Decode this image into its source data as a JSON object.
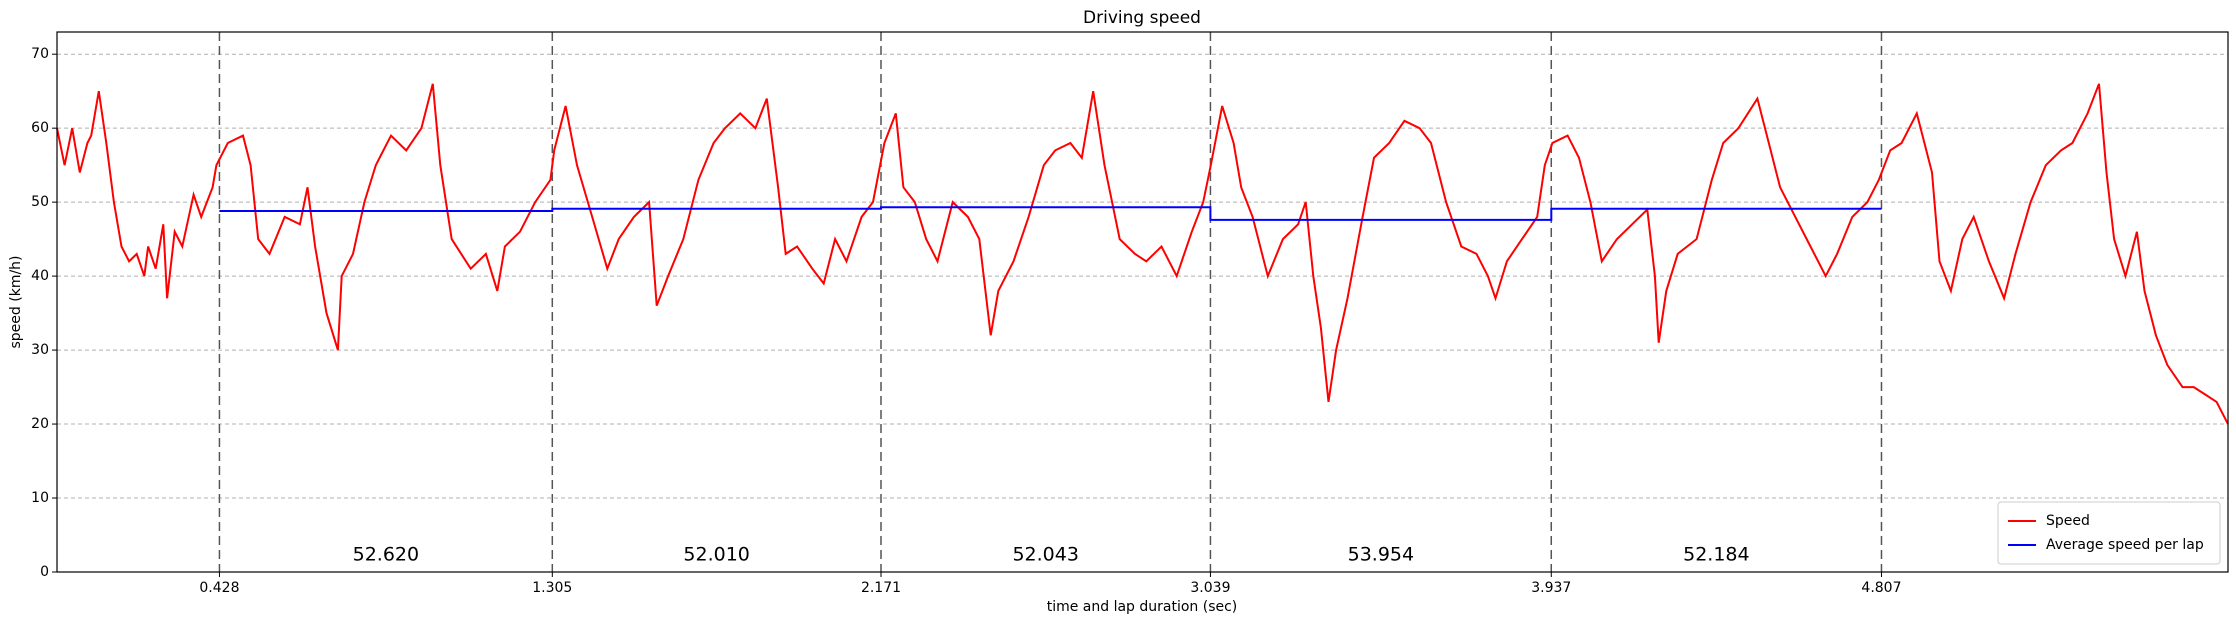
{
  "chart_data": {
    "type": "line",
    "title": "Driving speed",
    "xlabel": "time and lap duration (sec)",
    "ylabel": "speed (km/h)",
    "xlim": [
      0,
      5.72
    ],
    "ylim": [
      0,
      73
    ],
    "xticks": [
      0.428,
      1.305,
      2.171,
      3.039,
      3.937,
      4.807
    ],
    "yticks": [
      0,
      10,
      20,
      30,
      40,
      50,
      60,
      70
    ],
    "grid": true,
    "lap_lines": true,
    "legend": "lower right",
    "lap_labels": [
      "52.620",
      "52.010",
      "52.043",
      "53.954",
      "52.184"
    ],
    "series": [
      {
        "name": "Speed",
        "color": "#ff0000",
        "x": [
          0.0,
          0.02,
          0.04,
          0.06,
          0.08,
          0.09,
          0.11,
          0.13,
          0.15,
          0.17,
          0.19,
          0.21,
          0.23,
          0.24,
          0.26,
          0.28,
          0.29,
          0.31,
          0.33,
          0.36,
          0.38,
          0.41,
          0.42,
          0.45,
          0.49,
          0.51,
          0.53,
          0.56,
          0.6,
          0.64,
          0.66,
          0.68,
          0.71,
          0.74,
          0.75,
          0.78,
          0.81,
          0.84,
          0.88,
          0.92,
          0.96,
          0.99,
          1.01,
          1.04,
          1.09,
          1.13,
          1.16,
          1.18,
          1.22,
          1.26,
          1.3,
          1.31,
          1.34,
          1.37,
          1.41,
          1.45,
          1.48,
          1.52,
          1.56,
          1.58,
          1.61,
          1.65,
          1.69,
          1.73,
          1.76,
          1.8,
          1.84,
          1.87,
          1.9,
          1.92,
          1.95,
          1.99,
          2.02,
          2.05,
          2.08,
          2.12,
          2.15,
          2.18,
          2.21,
          2.23,
          2.26,
          2.29,
          2.32,
          2.36,
          2.4,
          2.43,
          2.46,
          2.48,
          2.52,
          2.56,
          2.6,
          2.63,
          2.67,
          2.7,
          2.73,
          2.76,
          2.8,
          2.84,
          2.87,
          2.91,
          2.95,
          2.99,
          3.02,
          3.04,
          3.07,
          3.1,
          3.12,
          3.15,
          3.19,
          3.23,
          3.27,
          3.29,
          3.31,
          3.33,
          3.35,
          3.37,
          3.4,
          3.44,
          3.47,
          3.51,
          3.55,
          3.59,
          3.62,
          3.66,
          3.7,
          3.74,
          3.77,
          3.79,
          3.82,
          3.86,
          3.9,
          3.92,
          3.94,
          3.98,
          4.01,
          4.04,
          4.07,
          4.11,
          4.15,
          4.19,
          4.21,
          4.22,
          4.24,
          4.27,
          4.32,
          4.36,
          4.39,
          4.43,
          4.48,
          4.51,
          4.54,
          4.58,
          4.62,
          4.66,
          4.69,
          4.73,
          4.77,
          4.8,
          4.83,
          4.86,
          4.9,
          4.94,
          4.96,
          4.99,
          5.02,
          5.05,
          5.09,
          5.13,
          5.16,
          5.2,
          5.24,
          5.28,
          5.31,
          5.35,
          5.38,
          5.4,
          5.42,
          5.45,
          5.48,
          5.5,
          5.53,
          5.56,
          5.6,
          5.63,
          5.66,
          5.69,
          5.72
        ],
        "values": [
          60,
          55,
          60,
          54,
          58,
          59,
          65,
          58,
          50,
          44,
          42,
          43,
          40,
          44,
          41,
          47,
          37,
          46,
          44,
          51,
          48,
          52,
          55,
          58,
          59,
          55,
          45,
          43,
          48,
          47,
          52,
          44,
          35,
          30,
          40,
          43,
          50,
          55,
          59,
          57,
          60,
          66,
          55,
          45,
          41,
          43,
          38,
          44,
          46,
          50,
          53,
          57,
          63,
          55,
          48,
          41,
          45,
          48,
          50,
          36,
          40,
          45,
          53,
          58,
          60,
          62,
          60,
          64,
          52,
          43,
          44,
          41,
          39,
          45,
          42,
          48,
          50,
          58,
          62,
          52,
          50,
          45,
          42,
          50,
          48,
          45,
          32,
          38,
          42,
          48,
          55,
          57,
          58,
          56,
          65,
          55,
          45,
          43,
          42,
          44,
          40,
          46,
          50,
          55,
          63,
          58,
          52,
          48,
          40,
          45,
          47,
          50,
          40,
          33,
          23,
          30,
          37,
          48,
          56,
          58,
          61,
          60,
          58,
          50,
          44,
          43,
          40,
          37,
          42,
          45,
          48,
          55,
          58,
          59,
          56,
          50,
          42,
          45,
          47,
          49,
          40,
          31,
          38,
          43,
          45,
          53,
          58,
          60,
          64,
          58,
          52,
          48,
          44,
          40,
          43,
          48,
          50,
          53,
          57,
          58,
          62,
          54,
          42,
          38,
          45,
          48,
          42,
          37,
          43,
          50,
          55,
          57,
          58,
          62,
          66,
          54,
          45,
          40,
          46,
          38,
          32,
          28,
          25,
          25,
          24,
          23,
          20
        ]
      },
      {
        "name": "Average speed per lap",
        "color": "#0000ff",
        "x": [
          0.428,
          1.305,
          1.305,
          2.171,
          2.171,
          3.039,
          3.039,
          3.937,
          3.937,
          4.807
        ],
        "values": [
          48.8,
          48.8,
          49.1,
          49.1,
          49.3,
          49.3,
          47.6,
          47.6,
          49.1,
          49.1
        ]
      }
    ]
  }
}
